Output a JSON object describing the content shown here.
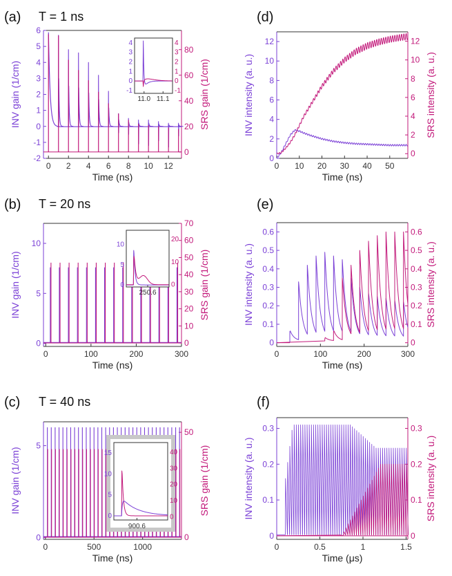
{
  "colors": {
    "inv": "#7a3fd6",
    "srs": "#c2187a",
    "axis": "#333333",
    "inset_frame": "#c8c8c8"
  },
  "panels": {
    "a": {
      "letter": "(a)",
      "title": "T = 1 ns"
    },
    "b": {
      "letter": "(b)",
      "title": "T = 20 ns"
    },
    "c": {
      "letter": "(c)",
      "title": "T = 40 ns"
    },
    "d": {
      "letter": "(d)",
      "title": ""
    },
    "e": {
      "letter": "(e)",
      "title": ""
    },
    "f": {
      "letter": "(f)",
      "title": ""
    }
  },
  "chart_data": [
    {
      "id": "a",
      "type": "line",
      "xlabel": "Time (ns)",
      "ylabel_left": "INV  gain (1/cm)",
      "ylabel_right": "SRS  gain (1/cm)",
      "xlim": [
        -0.5,
        13.3
      ],
      "ylim_left": [
        -2,
        6
      ],
      "ylim_right": [
        -5,
        95
      ],
      "xticks": [
        0,
        2,
        4,
        6,
        8,
        10,
        12
      ],
      "yticks_left": [
        -2,
        -1,
        0,
        1,
        2,
        3,
        4,
        5,
        6
      ],
      "yticks_right": [
        0,
        20,
        40,
        60,
        80
      ],
      "series": [
        {
          "axis": "left",
          "color_key": "inv",
          "spikes_x": [
            1,
            2,
            3,
            4,
            5,
            6,
            7,
            8,
            9,
            10,
            11,
            12,
            13
          ],
          "spikes_peak": [
            5.7,
            4.8,
            4.6,
            4.0,
            3.2,
            2.2,
            0.8,
            0.5,
            0.4,
            0.4,
            0.3,
            0.2,
            0.2
          ],
          "spikes_trough": [
            0,
            0,
            0,
            0,
            0,
            0,
            -0.4,
            -0.5,
            -1.1,
            -1.2,
            -0.9,
            -1.3,
            -0.6
          ],
          "baseline": -0.02
        },
        {
          "axis": "right",
          "color_key": "srs",
          "spikes_x": [
            1,
            2,
            3,
            4,
            5,
            6,
            7,
            8,
            9,
            10,
            11,
            12,
            13
          ],
          "spikes_peak": [
            91,
            72,
            64,
            56,
            47,
            38,
            30,
            25,
            22,
            21,
            20,
            19,
            18
          ],
          "baseline": 0
        }
      ],
      "inset": {
        "xticks": [
          11.0,
          11.1
        ],
        "xticklabels": [
          "11.0",
          "11.1"
        ],
        "yticks_left": [
          -1,
          0,
          1,
          2,
          3,
          4
        ],
        "yticks_right": [
          -1,
          0,
          1,
          2,
          3,
          4
        ],
        "xlim": [
          10.95,
          11.15
        ],
        "ylim": [
          -1.3,
          4.5
        ]
      }
    },
    {
      "id": "b",
      "type": "line",
      "xlabel": "Time (ns)",
      "ylabel_left": "INV  gain (1/cm)",
      "ylabel_right": "SRS  gain (1/cm)",
      "xlim": [
        -5,
        300
      ],
      "ylim_left": [
        -0.3,
        12
      ],
      "ylim_right": [
        -2,
        70
      ],
      "xticks": [
        0,
        100,
        200,
        300
      ],
      "yticks_left": [
        0,
        5,
        10
      ],
      "yticks_right": [
        0,
        10,
        20,
        30,
        40,
        50,
        60,
        70
      ],
      "series": [
        {
          "axis": "left",
          "color_key": "inv",
          "spikes_start": 10,
          "spikes_step": 20,
          "spikes_count": 15,
          "spikes_peak": 7.6,
          "baseline": 0.1
        },
        {
          "axis": "right",
          "color_key": "srs",
          "spikes_start": 10,
          "spikes_step": 20,
          "spikes_count": 15,
          "spikes_peak": 47,
          "baseline": 0
        }
      ],
      "inset": {
        "xticks": [
          250.6
        ],
        "xticklabels": [
          "250.6"
        ],
        "yticks_left": [
          0,
          5,
          10
        ],
        "yticks_right": [
          0,
          10,
          20
        ]
      }
    },
    {
      "id": "c",
      "type": "line",
      "xlabel": "Time (ns)",
      "ylabel_left": "INV  gain (1/cm)",
      "ylabel_right": "SRS  gain (1/cm)",
      "xlim": [
        -20,
        1400
      ],
      "ylim_left": [
        -0.1,
        6.3
      ],
      "ylim_right": [
        -1,
        55
      ],
      "xticks": [
        0,
        500,
        1000
      ],
      "yticks_left": [
        0,
        5
      ],
      "yticks_right": [
        0,
        50
      ],
      "series": [
        {
          "axis": "left",
          "color_key": "inv",
          "spikes_start": 20,
          "spikes_step": 40,
          "spikes_count": 35,
          "spikes_peak": 6.0,
          "baseline": 0.05
        },
        {
          "axis": "right",
          "color_key": "srs",
          "spikes_start": 20,
          "spikes_step": 40,
          "spikes_count": 35,
          "spikes_peak": 42,
          "baseline": 0
        }
      ],
      "inset": {
        "xticks": [
          900.6
        ],
        "xticklabels": [
          "900.6"
        ],
        "yticks_left": [
          0,
          5,
          10,
          15
        ],
        "yticks_right": [
          0,
          10,
          20,
          30,
          40
        ]
      }
    },
    {
      "id": "d",
      "type": "line",
      "xlabel": "Time (ns)",
      "ylabel_left": "INV intensity (a. u.)",
      "ylabel_right": "SRS intensity (a. u.)",
      "xlim": [
        0,
        58
      ],
      "ylim_left": [
        0,
        13
      ],
      "ylim_right": [
        -0.5,
        13
      ],
      "xticks": [
        0,
        10,
        20,
        30,
        40,
        50
      ],
      "yticks_left": [
        0,
        2,
        4,
        6,
        8,
        10,
        12
      ],
      "yticks_right": [
        0,
        2,
        4,
        6,
        8,
        10,
        12
      ],
      "series": [
        {
          "axis": "left",
          "color_key": "inv",
          "x": [
            0,
            2,
            4,
            6,
            8,
            10,
            12,
            15,
            20,
            25,
            30,
            35,
            40,
            45,
            50,
            55,
            58
          ],
          "y": [
            0,
            0.6,
            1.5,
            2.4,
            2.9,
            2.8,
            2.6,
            2.35,
            2.0,
            1.75,
            1.6,
            1.5,
            1.45,
            1.4,
            1.35,
            1.35,
            1.35
          ]
        },
        {
          "axis": "right",
          "color_key": "srs",
          "x": [
            0,
            2,
            4,
            6,
            8,
            10,
            12,
            15,
            20,
            25,
            30,
            35,
            40,
            45,
            50,
            55,
            58
          ],
          "y": [
            0,
            0.1,
            0.6,
            1.2,
            2.0,
            3.0,
            4.0,
            5.2,
            7.2,
            8.8,
            10.0,
            10.9,
            11.5,
            11.9,
            12.2,
            12.4,
            12.5
          ]
        }
      ]
    },
    {
      "id": "e",
      "type": "line",
      "xlabel": "Time (ns)",
      "ylabel_left": "INV intensity (a. u.)",
      "ylabel_right": "SRS intensity (a. u.)",
      "xlim": [
        0,
        300
      ],
      "ylim_left": [
        -0.02,
        0.65
      ],
      "ylim_right": [
        -0.02,
        0.65
      ],
      "xticks": [
        0,
        100,
        200,
        300
      ],
      "yticks_left": [
        0.0,
        0.1,
        0.2,
        0.3,
        0.4,
        0.5,
        0.6
      ],
      "yticks_right": [
        0.0,
        0.1,
        0.2,
        0.3,
        0.4,
        0.5,
        0.6
      ],
      "series": [
        {
          "axis": "left",
          "color_key": "inv",
          "pulse_x": [
            30,
            50,
            70,
            90,
            110,
            130,
            150,
            170,
            190,
            210,
            230,
            250,
            270,
            290
          ],
          "pulse_peak": [
            0.06,
            0.33,
            0.42,
            0.47,
            0.49,
            0.47,
            0.45,
            0.35,
            0.3,
            0.27,
            0.25,
            0.24,
            0.23,
            0.22
          ]
        },
        {
          "axis": "right",
          "color_key": "srs",
          "pulse_x": [
            110,
            130,
            150,
            170,
            190,
            210,
            230,
            250,
            270,
            290
          ],
          "pulse_peak": [
            0.02,
            0.06,
            0.35,
            0.42,
            0.5,
            0.55,
            0.58,
            0.6,
            0.6,
            0.6
          ]
        }
      ]
    },
    {
      "id": "f",
      "type": "line",
      "xlabel": "Time (μs)",
      "ylabel_left": "INV intensity (a. u.)",
      "ylabel_right": "SRS intensity (a. u.)",
      "xlim": [
        0,
        1.52
      ],
      "ylim_left": [
        -0.01,
        0.33
      ],
      "ylim_right": [
        -0.01,
        0.33
      ],
      "xticks": [
        0.0,
        0.5,
        1.0,
        1.5
      ],
      "yticks_left": [
        0.0,
        0.1,
        0.2,
        0.3
      ],
      "yticks_right": [
        0.0,
        0.1,
        0.2,
        0.3
      ],
      "series": [
        {
          "axis": "left",
          "color_key": "inv",
          "pulse_start": 0.1,
          "pulse_step": 0.025,
          "pulse_end": 1.5,
          "peak_plateau": 0.31,
          "peak_final": 0.245
        },
        {
          "axis": "right",
          "color_key": "srs",
          "pulse_start": 0.75,
          "pulse_step": 0.025,
          "pulse_end": 1.5,
          "peak_final": 0.2
        }
      ]
    }
  ]
}
